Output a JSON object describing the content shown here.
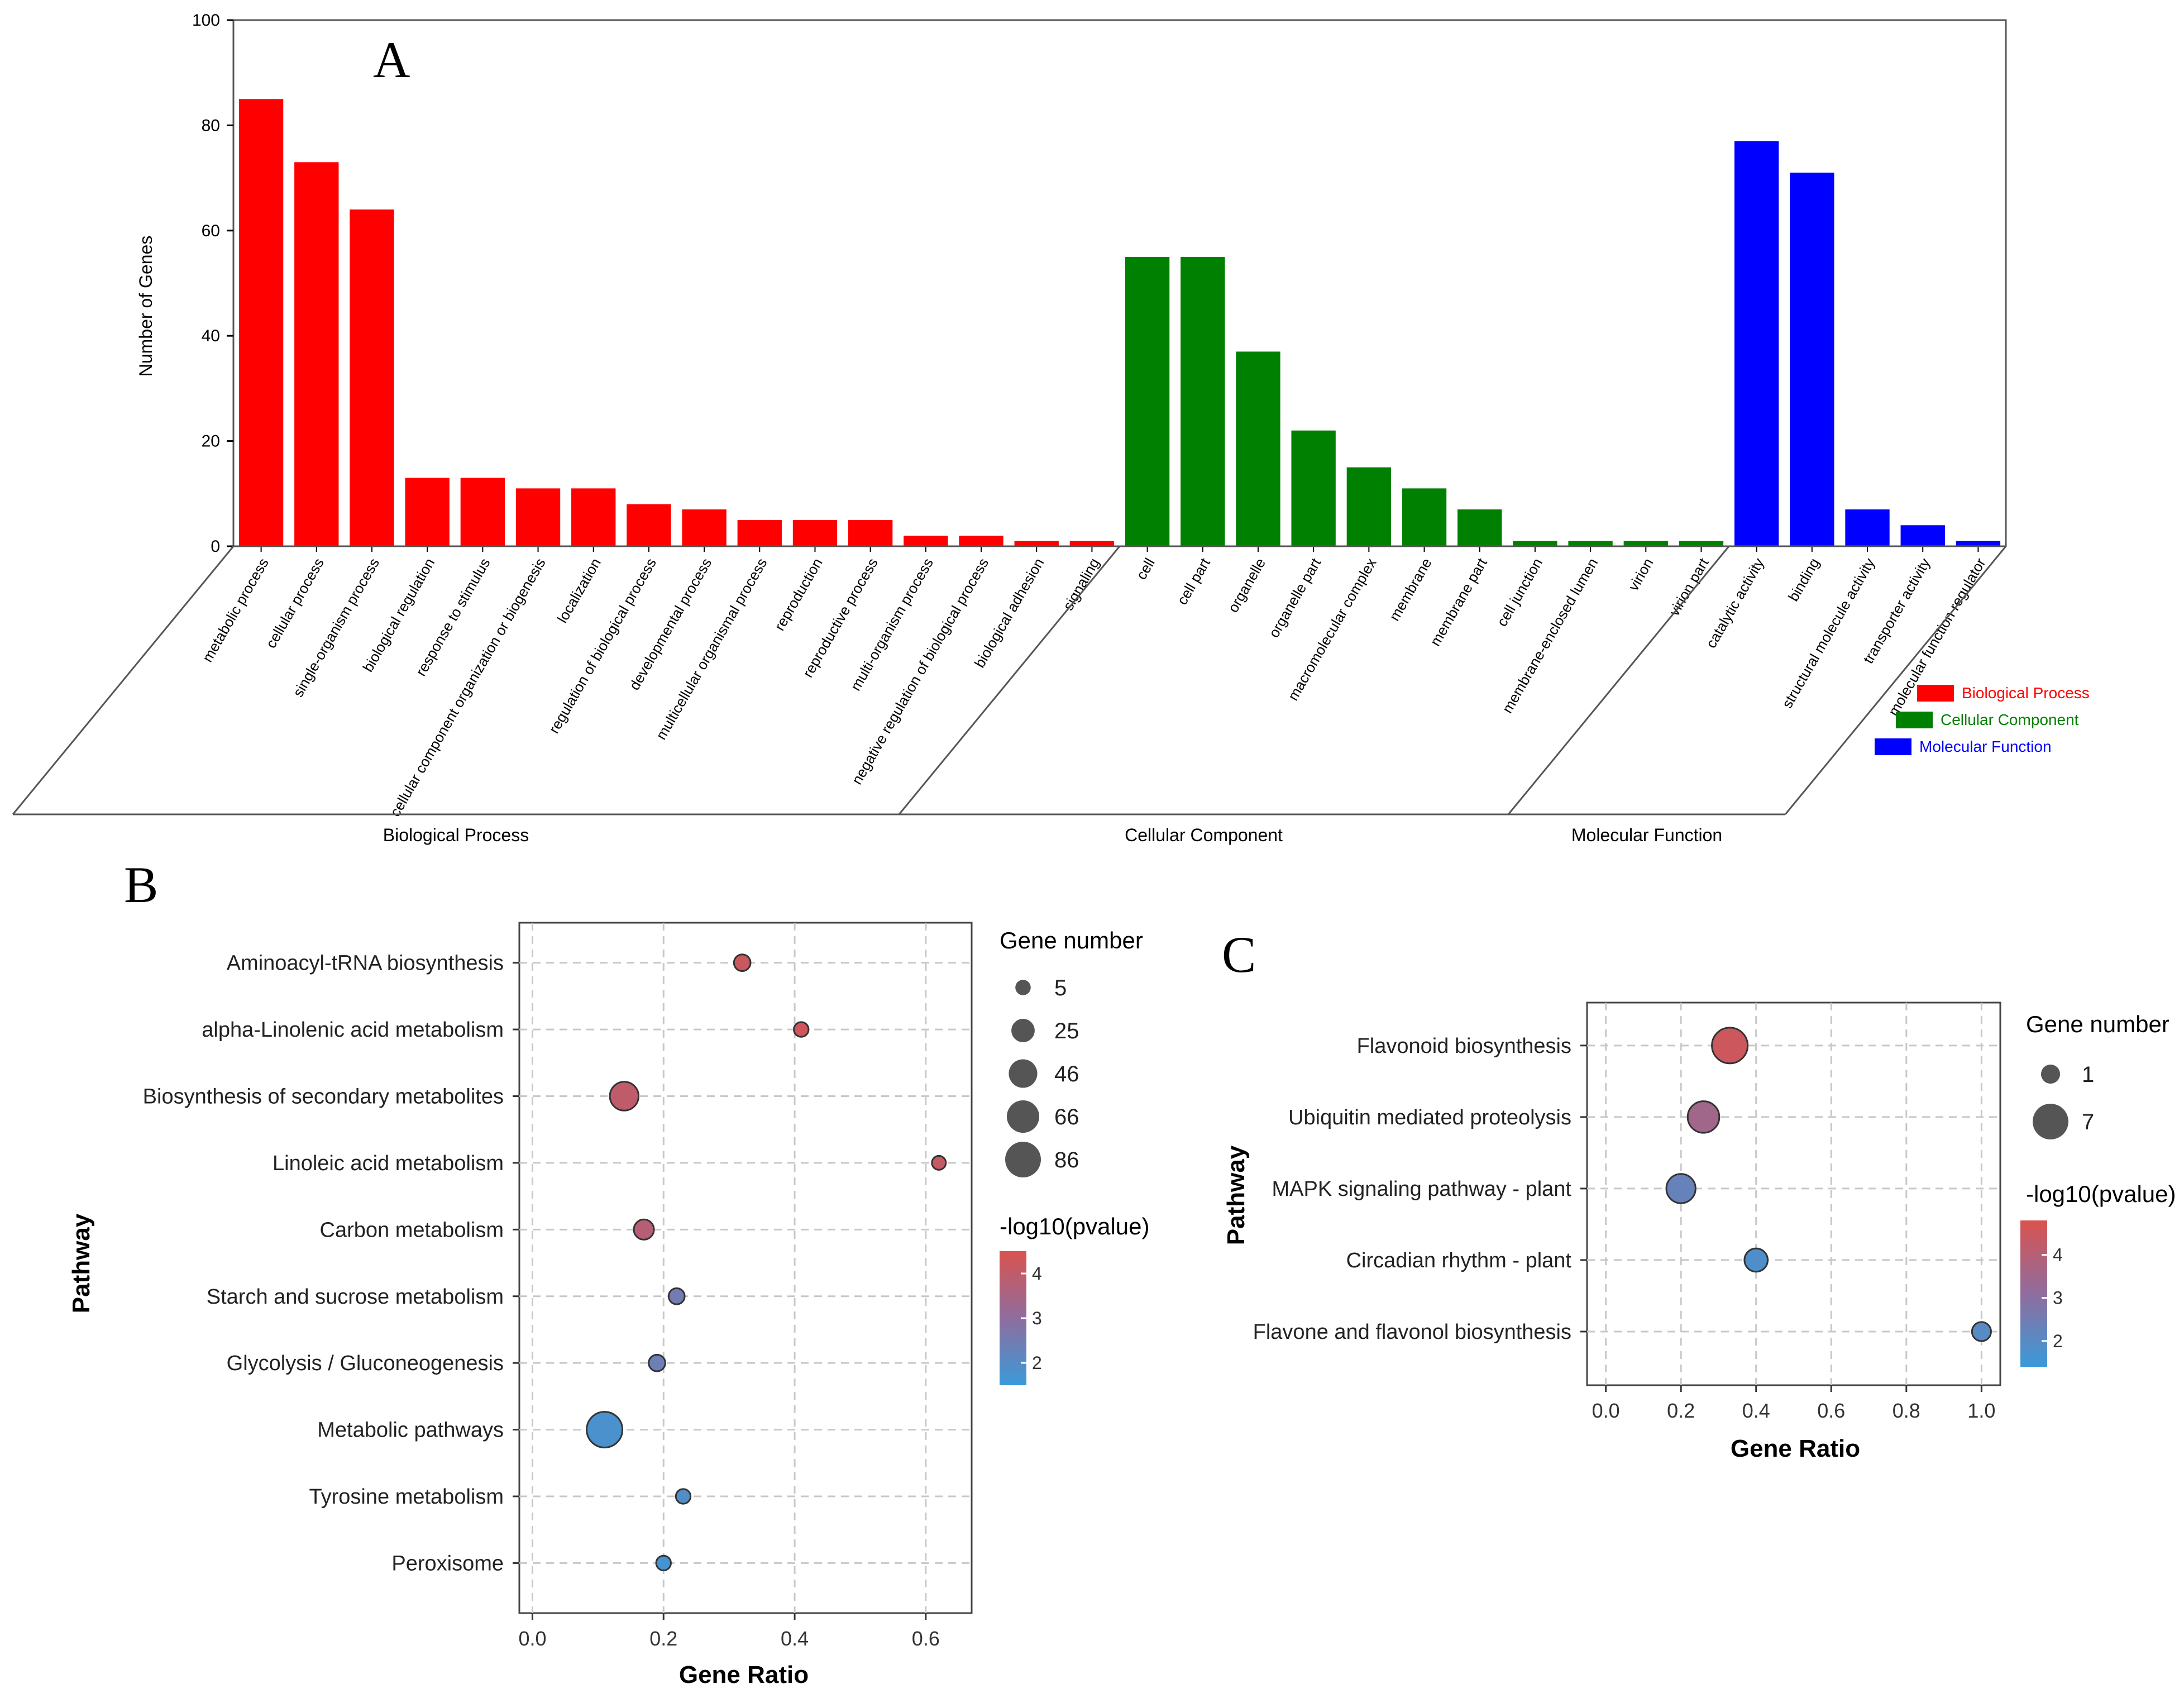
{
  "panels": {
    "a_label": "A",
    "b_label": "B",
    "c_label": "C"
  },
  "colors": {
    "bp": "#ff0000",
    "cc": "#008000",
    "mf": "#0000ff",
    "pval_high": "#d9534f",
    "pval_mid": "#8f6d9e",
    "pval_low": "#3a9ad9"
  },
  "chart_data": [
    {
      "id": "A",
      "type": "bar",
      "ylabel": "Number of Genes",
      "ylim": [
        0,
        100
      ],
      "yticks": [
        0,
        20,
        40,
        60,
        80,
        100
      ],
      "grid": false,
      "legend_position": "right",
      "groups": [
        {
          "name": "Biological Process",
          "legend": "Biological Process",
          "color": "#ff0000",
          "categories": [
            "metabolic process",
            "cellular process",
            "single-organism process",
            "biological regulation",
            "response to stimulus",
            "cellular component organization or biogenesis",
            "localization",
            "regulation of biological process",
            "developmental process",
            "multicellular organismal process",
            "reproduction",
            "reproductive process",
            "multi-organism process",
            "negative regulation of biological process",
            "biological adhesion",
            "signaling"
          ],
          "values": [
            85,
            73,
            64,
            13,
            13,
            11,
            11,
            8,
            7,
            5,
            5,
            5,
            2,
            2,
            1,
            1
          ]
        },
        {
          "name": "Cellular Component",
          "legend": "Cellular Component",
          "color": "#008000",
          "categories": [
            "cell",
            "cell part",
            "organelle",
            "organelle part",
            "macromolecular complex",
            "membrane",
            "membrane part",
            "cell junction",
            "membrane-enclosed lumen",
            "virion",
            "virion part"
          ],
          "values": [
            55,
            55,
            37,
            22,
            15,
            11,
            7,
            1,
            1,
            1,
            1
          ]
        },
        {
          "name": "Molecular Function",
          "legend": "Molecular Function",
          "color": "#0000ff",
          "categories": [
            "catalytic activity",
            "binding",
            "structural molecule activity",
            "transporter activity",
            "molecular function regulator"
          ],
          "values": [
            77,
            71,
            7,
            4,
            1
          ]
        }
      ]
    },
    {
      "id": "B",
      "type": "scatter",
      "xlabel": "Gene Ratio",
      "ylabel": "Pathway",
      "xlim": [
        -0.02,
        0.67
      ],
      "xticks": [
        "0.0",
        "0.2",
        "0.4",
        "0.6"
      ],
      "grid": true,
      "size_legend_title": "Gene number",
      "size_legend": [
        "5",
        "25",
        "46",
        "66",
        "86"
      ],
      "color_legend_title": "-log10(pvalue)",
      "color_ticks": [
        "4",
        "3",
        "2"
      ],
      "color_range": [
        1.5,
        4.5
      ],
      "pathways": [
        "Aminoacyl-tRNA biosynthesis",
        "alpha-Linolenic acid metabolism",
        "Biosynthesis of secondary metabolites",
        "Linoleic acid metabolism",
        "Carbon metabolism",
        "Starch and sucrose metabolism",
        "Glycolysis / Gluconeogenesis",
        "Metabolic pathways",
        "Tyrosine metabolism",
        "Peroxisome"
      ],
      "points": [
        {
          "x": 0.32,
          "gene_number": 7,
          "neglog10p": 4.2
        },
        {
          "x": 0.41,
          "gene_number": 4,
          "neglog10p": 4.3
        },
        {
          "x": 0.14,
          "gene_number": 47,
          "neglog10p": 4.0
        },
        {
          "x": 0.62,
          "gene_number": 3,
          "neglog10p": 4.1
        },
        {
          "x": 0.17,
          "gene_number": 15,
          "neglog10p": 3.8
        },
        {
          "x": 0.22,
          "gene_number": 6,
          "neglog10p": 2.5
        },
        {
          "x": 0.19,
          "gene_number": 7,
          "neglog10p": 2.4
        },
        {
          "x": 0.11,
          "gene_number": 86,
          "neglog10p": 1.8
        },
        {
          "x": 0.23,
          "gene_number": 4,
          "neglog10p": 1.9
        },
        {
          "x": 0.2,
          "gene_number": 4,
          "neglog10p": 1.7
        }
      ]
    },
    {
      "id": "C",
      "type": "scatter",
      "xlabel": "Gene Ratio",
      "ylabel": "Pathway",
      "xlim": [
        -0.05,
        1.05
      ],
      "xticks": [
        "0.0",
        "0.2",
        "0.4",
        "0.6",
        "0.8",
        "1.0"
      ],
      "grid": true,
      "size_legend_title": "Gene number",
      "size_legend": [
        "1",
        "7"
      ],
      "color_legend_title": "-log10(pvalue)",
      "color_ticks": [
        "4",
        "3",
        "2"
      ],
      "color_range": [
        1.4,
        4.8
      ],
      "pathways": [
        "Flavonoid biosynthesis",
        "Ubiquitin mediated proteolysis",
        "MAPK signaling pathway - plant",
        "Circadian rhythm - plant",
        "Flavone and flavonol biosynthesis"
      ],
      "points": [
        {
          "x": 0.33,
          "gene_number": 7,
          "neglog10p": 4.5
        },
        {
          "x": 0.26,
          "gene_number": 5,
          "neglog10p": 3.5
        },
        {
          "x": 0.2,
          "gene_number": 4,
          "neglog10p": 2.3
        },
        {
          "x": 0.4,
          "gene_number": 2,
          "neglog10p": 1.8
        },
        {
          "x": 1.0,
          "gene_number": 1,
          "neglog10p": 2.0
        }
      ]
    }
  ]
}
